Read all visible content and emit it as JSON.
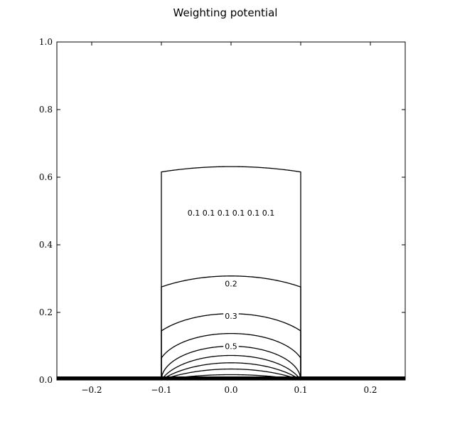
{
  "chart_data": {
    "type": "contour",
    "title": "Weighting potential",
    "xlabel": "",
    "ylabel": "",
    "xlim": [
      -0.25,
      0.25
    ],
    "ylim": [
      0.0,
      1.0
    ],
    "grid": false,
    "x_ticks": [
      {
        "value": -0.2,
        "label": "−0.2"
      },
      {
        "value": -0.1,
        "label": "−0.1"
      },
      {
        "value": 0.0,
        "label": "0.0"
      },
      {
        "value": 0.1,
        "label": "0.1"
      },
      {
        "value": 0.2,
        "label": "0.2"
      }
    ],
    "y_ticks": [
      {
        "value": 0.0,
        "label": "0.0"
      },
      {
        "value": 0.2,
        "label": "0.2"
      },
      {
        "value": 0.4,
        "label": "0.4"
      },
      {
        "value": 0.6,
        "label": "0.6"
      },
      {
        "value": 0.8,
        "label": "0.8"
      },
      {
        "value": 1.0,
        "label": "1.0"
      }
    ],
    "electrode": {
      "x_range": [
        -0.25,
        0.25
      ],
      "y": 0.0
    },
    "strip": {
      "x_range": [
        -0.1,
        0.1
      ]
    },
    "contour_levels": [
      0.1,
      0.2,
      0.3,
      0.4,
      0.5,
      0.6,
      0.7,
      0.8,
      0.9
    ],
    "contour_labels": [
      {
        "text": "0.1 0.1 0.1 0.1 0.1 0.1",
        "x": 0.0,
        "y": 0.495
      },
      {
        "text": "0.2",
        "x": 0.0,
        "y": 0.285
      },
      {
        "text": "0.3",
        "x": 0.0,
        "y": 0.19
      },
      {
        "text": "0.5",
        "x": 0.0,
        "y": 0.1
      }
    ]
  }
}
